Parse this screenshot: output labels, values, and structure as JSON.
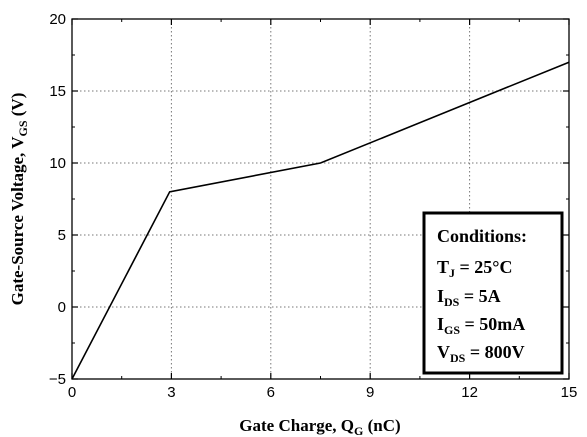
{
  "chart_data": {
    "type": "line",
    "title": "",
    "xlabel": {
      "main": "Gate Charge, Q",
      "sub": "G",
      "unit": " (nC)"
    },
    "ylabel": {
      "main": "Gate-Source Voltage, V",
      "sub": "GS",
      "unit": " (V)"
    },
    "xlim": [
      0,
      15
    ],
    "ylim": [
      -5,
      20
    ],
    "x_ticks": [
      0,
      3,
      6,
      9,
      12,
      15
    ],
    "y_ticks": [
      -5,
      0,
      5,
      10,
      15,
      20
    ],
    "grid": true,
    "series": [
      {
        "x": [
          0,
          2.95,
          7.5,
          15
        ],
        "y": [
          -5,
          8,
          10,
          17
        ]
      }
    ],
    "annotation": {
      "title": "Conditions:",
      "lines": [
        {
          "main": "T",
          "sub": "J",
          "value": " = 25°C"
        },
        {
          "main": "I",
          "sub": "DS",
          "value": " = 5A"
        },
        {
          "main": "I",
          "sub": "GS",
          "value": " = 50mA"
        },
        {
          "main": "V",
          "sub": "DS",
          "value": " = 800V"
        }
      ],
      "placement": "bottom-right"
    }
  }
}
